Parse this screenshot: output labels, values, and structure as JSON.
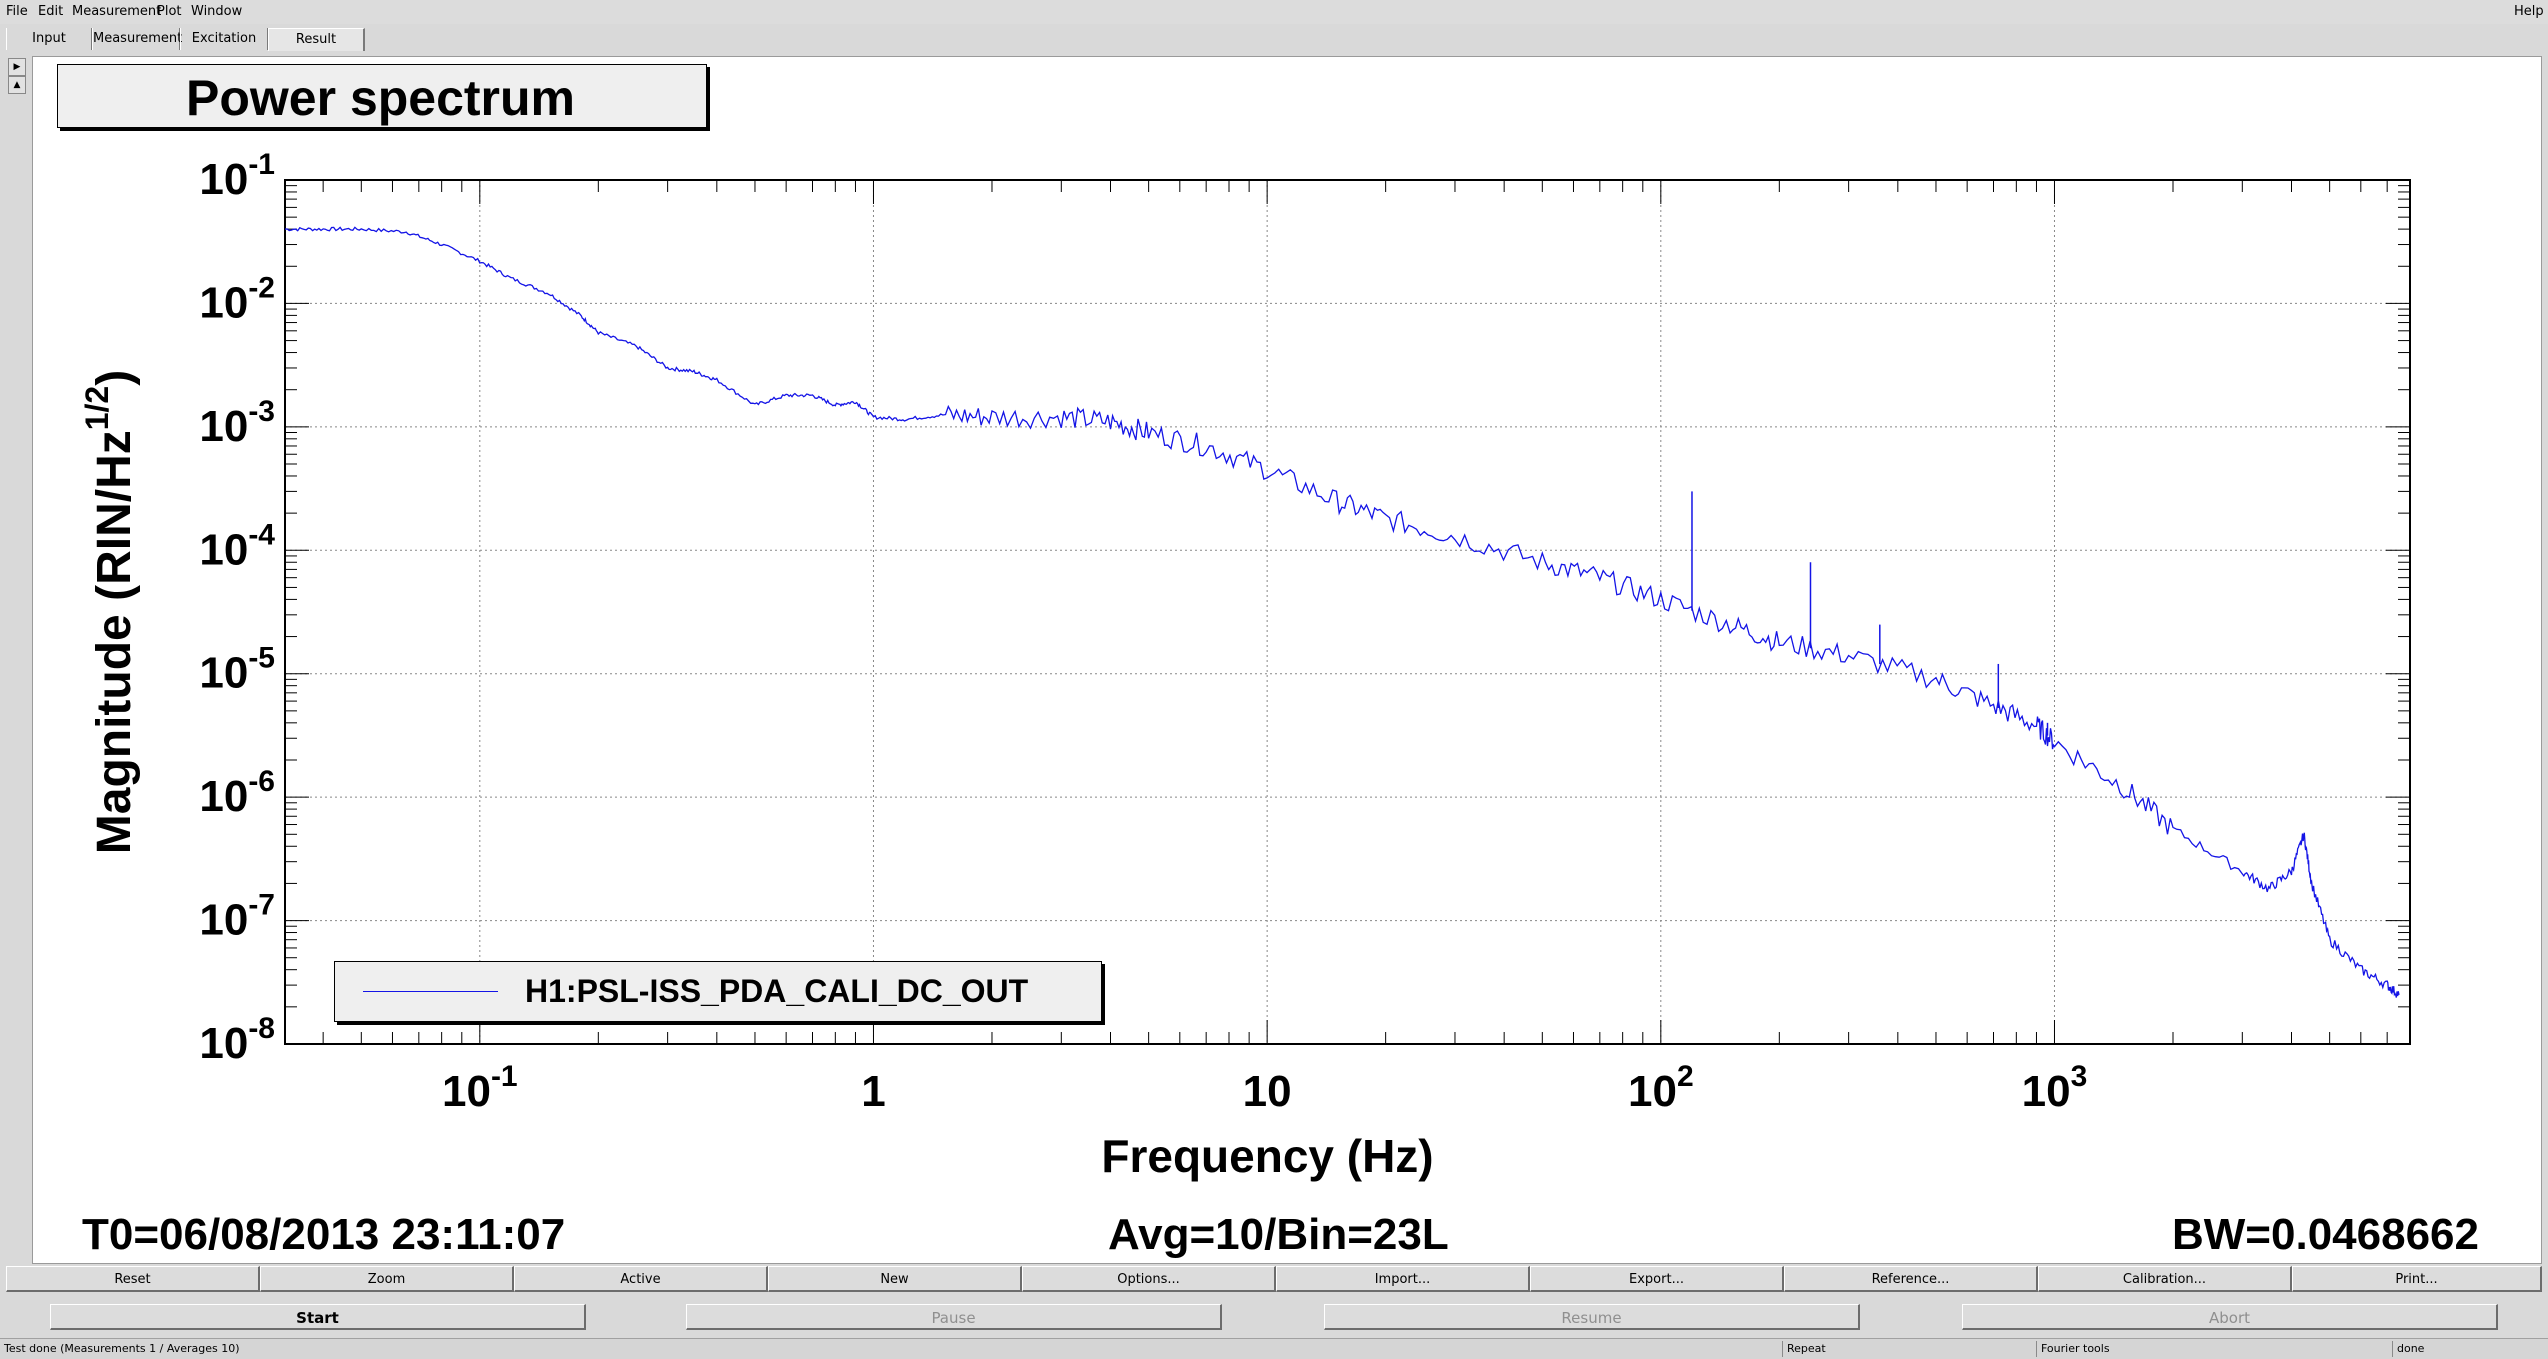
{
  "menu": {
    "items": [
      "File",
      "Edit",
      "Measurement",
      "Plot",
      "Window"
    ],
    "help": "Help"
  },
  "tabs": [
    "Input",
    "Measurement",
    "Excitation",
    "Result"
  ],
  "active_tab": "Result",
  "plot_title": "Power spectrum",
  "chart_data": {
    "type": "line",
    "title": "",
    "xlabel": "Frequency (Hz)",
    "ylabel": "Magnitude (RIN/Hz^1/2)",
    "xscale": "log",
    "yscale": "log",
    "xlim": [
      0.032,
      8000
    ],
    "ylim": [
      1e-08,
      0.1
    ],
    "grid": true,
    "legend_placement": "bottom-left",
    "x_ticks": [
      "10-1",
      "1",
      "10",
      "102",
      "103"
    ],
    "y_ticks": [
      "10-1",
      "10-2",
      "10-3",
      "10-4",
      "10-5",
      "10-6",
      "10-7",
      "10-8"
    ],
    "series": [
      {
        "name": "H1:PSL-ISS_PDA_CALI_DC_OUT",
        "color": "#1414e6",
        "x": [
          0.032,
          0.04,
          0.05,
          0.065,
          0.08,
          0.1,
          0.12,
          0.15,
          0.18,
          0.2,
          0.25,
          0.3,
          0.35,
          0.4,
          0.5,
          0.6,
          0.7,
          0.8,
          0.9,
          1.0,
          1.2,
          1.5,
          2.0,
          3.0,
          4.0,
          5.0,
          7.0,
          10,
          15,
          20,
          30,
          50,
          70,
          100,
          150,
          200,
          300,
          500,
          700,
          900,
          1000,
          1500,
          2000,
          3000,
          3500,
          4000,
          4300,
          4500,
          5000,
          6000,
          7000,
          7500
        ],
        "y": [
          0.04,
          0.04,
          0.04,
          0.038,
          0.03,
          0.022,
          0.016,
          0.012,
          0.008,
          0.0058,
          0.0045,
          0.003,
          0.0028,
          0.0024,
          0.0015,
          0.0018,
          0.0018,
          0.0015,
          0.0016,
          0.0012,
          0.00115,
          0.00125,
          0.0012,
          0.0012,
          0.0011,
          0.0009,
          0.0007,
          0.00045,
          0.00025,
          0.00018,
          0.00013,
          8e-05,
          6e-05,
          4e-05,
          2.5e-05,
          1.8e-05,
          1.4e-05,
          9e-06,
          5.5e-06,
          3.8e-06,
          2.8e-06,
          1.2e-06,
          5.5e-07,
          2.5e-07,
          1.8e-07,
          2.5e-07,
          5e-07,
          2e-07,
          7e-08,
          4e-08,
          3e-08,
          2.5e-08
        ]
      }
    ],
    "spikes": [
      {
        "x": 120,
        "y": 0.0003
      },
      {
        "x": 240,
        "y": 8e-05
      },
      {
        "x": 360,
        "y": 2.5e-05
      },
      {
        "x": 720,
        "y": 1.2e-05
      },
      {
        "x": 960,
        "y": 4e-06
      }
    ]
  },
  "info": {
    "t0": "T0=06/08/2013 23:11:07",
    "avg": "Avg=10/Bin=23L",
    "bw": "BW=0.0468662"
  },
  "buttons_row1": [
    "Reset",
    "Zoom",
    "Active",
    "New",
    "Options...",
    "Import...",
    "Export...",
    "Reference...",
    "Calibration...",
    "Print..."
  ],
  "buttons_row2": [
    "Start",
    "Pause",
    "Resume",
    "Abort"
  ],
  "status": {
    "message": "Test done (Measurements 1 / Averages 10)",
    "repeat": "Repeat",
    "tools": "Fourier tools",
    "state": "done"
  }
}
